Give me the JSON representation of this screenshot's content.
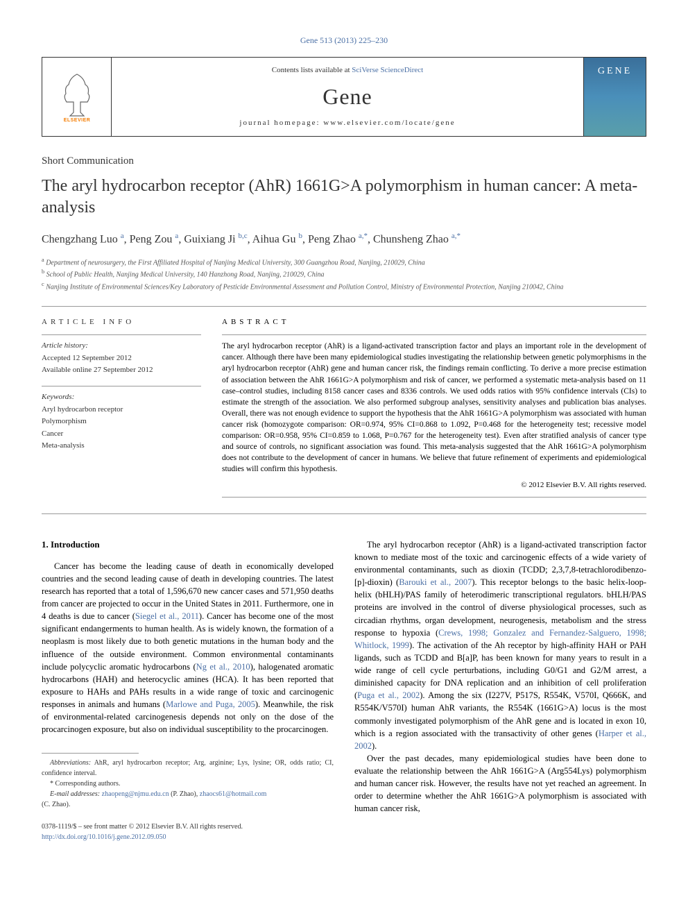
{
  "journal_ref": "Gene 513 (2013) 225–230",
  "banner": {
    "contents_text": "Contents lists available at ",
    "contents_link": "SciVerse ScienceDirect",
    "journal_name": "Gene",
    "homepage": "journal homepage: www.elsevier.com/locate/gene",
    "cover_label": "GENE",
    "publisher": "ELSEVIER"
  },
  "article_type": "Short Communication",
  "title": "The aryl hydrocarbon receptor (AhR) 1661G>A polymorphism in human cancer: A meta-analysis",
  "authors_html": "Chengzhang Luo <sup>a</sup>, Peng Zou <sup>a</sup>, Guixiang Ji <sup>b,c</sup>, Aihua Gu <sup>b</sup>, Peng Zhao <sup>a,<span class='star'>*</span></sup>, Chunsheng Zhao <sup>a,<span class='star'>*</span></sup>",
  "affiliations": [
    {
      "sup": "a",
      "text": "Department of neurosurgery, the First Affiliated Hospital of Nanjing Medical University, 300 Guangzhou Road, Nanjing, 210029, China"
    },
    {
      "sup": "b",
      "text": "School of Public Health, Nanjing Medical University, 140 Hanzhong Road, Nanjing, 210029, China"
    },
    {
      "sup": "c",
      "text": "Nanjing Institute of Environmental Sciences/Key Laboratory of Pesticide Environmental Assessment and Pollution Control, Ministry of Environmental Protection, Nanjing 210042, China"
    }
  ],
  "article_info": {
    "heading": "ARTICLE INFO",
    "history_label": "Article history:",
    "accepted": "Accepted 12 September 2012",
    "online": "Available online 27 September 2012",
    "keywords_label": "Keywords:",
    "keywords": [
      "Aryl hydrocarbon receptor",
      "Polymorphism",
      "Cancer",
      "Meta-analysis"
    ]
  },
  "abstract": {
    "heading": "ABSTRACT",
    "text": "The aryl hydrocarbon receptor (AhR) is a ligand-activated transcription factor and plays an important role in the development of cancer. Although there have been many epidemiological studies investigating the relationship between genetic polymorphisms in the aryl hydrocarbon receptor (AhR) gene and human cancer risk, the findings remain conflicting. To derive a more precise estimation of association between the AhR 1661G>A polymorphism and risk of cancer, we performed a systematic meta-analysis based on 11 case–control studies, including 8158 cancer cases and 8336 controls. We used odds ratios with 95% confidence intervals (CIs) to estimate the strength of the association. We also performed subgroup analyses, sensitivity analyses and publication bias analyses. Overall, there was not enough evidence to support the hypothesis that the AhR 1661G>A polymorphism was associated with human cancer risk (homozygote comparison: OR=0.974, 95% CI=0.868 to 1.092, P=0.468 for the heterogeneity test; recessive model comparison: OR=0.958, 95% CI=0.859 to 1.068, P=0.767 for the heterogeneity test). Even after stratified analysis of cancer type and source of controls, no significant association was found. This meta-analysis suggested that the AhR 1661G>A polymorphism does not contribute to the development of cancer in humans. We believe that future refinement of experiments and epidemiological studies will confirm this hypothesis.",
    "copyright": "© 2012 Elsevier B.V. All rights reserved."
  },
  "body": {
    "section_heading": "1. Introduction",
    "left_paras": [
      "Cancer has become the leading cause of death in economically developed countries and the second leading cause of death in developing countries. The latest research has reported that a total of 1,596,670 new cancer cases and 571,950 deaths from cancer are projected to occur in the United States in 2011. Furthermore, one in 4 deaths is due to cancer (<span class='cite'>Siegel et al., 2011</span>). Cancer has become one of the most significant endangerments to human health. As is widely known, the formation of a neoplasm is most likely due to both genetic mutations in the human body and the influence of the outside environment. Common environmental contaminants include polycyclic aromatic hydrocarbons (<span class='cite'>Ng et al., 2010</span>), halogenated aromatic hydrocarbons (HAH) and heterocyclic amines (HCA). It has been reported that exposure to HAHs and PAHs results in a wide range of toxic and carcinogenic responses in animals and humans (<span class='cite'>Marlowe and Puga, 2005</span>). Meanwhile, the risk of environmental-related carcinogenesis depends not only on the dose of the procarcinogen exposure, but also on individual susceptibility to the procarcinogen."
    ],
    "right_paras": [
      "The aryl hydrocarbon receptor (AhR) is a ligand-activated transcription factor known to mediate most of the toxic and carcinogenic effects of a wide variety of environmental contaminants, such as dioxin (TCDD; 2,3,7,8-tetrachlorodibenzo-[p]-dioxin) (<span class='cite'>Barouki et al., 2007</span>). This receptor belongs to the basic helix-loop-helix (bHLH)/PAS family of heterodimeric transcriptional regulators. bHLH/PAS proteins are involved in the control of diverse physiological processes, such as circadian rhythms, organ development, neurogenesis, metabolism and the stress response to hypoxia (<span class='cite'>Crews, 1998; Gonzalez and Fernandez-Salguero, 1998; Whitlock, 1999</span>). The activation of the Ah receptor by high-affinity HAH or PAH ligands, such as TCDD and B[a]P, has been known for many years to result in a wide range of cell cycle perturbations, including G0/G1 and G2/M arrest, a diminished capacity for DNA replication and an inhibition of cell proliferation (<span class='cite'>Puga et al., 2002</span>). Among the six (I227V, P517S, R554K, V570I, Q666K, and R554K/V570I) human AhR variants, the R554K (1661G>A) locus is the most commonly investigated polymorphism of the AhR gene and is located in exon 10, which is a region associated with the transactivity of other genes (<span class='cite'>Harper et al., 2002</span>).",
      "Over the past decades, many epidemiological studies have been done to evaluate the relationship between the AhR 1661G>A (Arg554Lys) polymorphism and human cancer risk. However, the results have not yet reached an agreement. In order to determine whether the AhR 1661G>A polymorphism is associated with human cancer risk,"
    ]
  },
  "footnotes": {
    "abbrev_label": "Abbreviations:",
    "abbrev_text": "AhR, aryl hydrocarbon receptor; Arg, arginine; Lys, lysine; OR, odds ratio; CI, confidence interval.",
    "corr": "* Corresponding authors.",
    "email_label": "E-mail addresses:",
    "email1": "zhaopeng@njmu.edu.cn",
    "email1_name": "(P. Zhao),",
    "email2": "zhaocs61@hotmail.com",
    "email2_name": "(C. Zhao)."
  },
  "footer": {
    "issn": "0378-1119/$ – see front matter © 2012 Elsevier B.V. All rights reserved.",
    "doi": "http://dx.doi.org/10.1016/j.gene.2012.09.050"
  },
  "colors": {
    "link": "#4a6fa5",
    "text": "#000000",
    "muted": "#555555",
    "orange": "#f57c00"
  }
}
